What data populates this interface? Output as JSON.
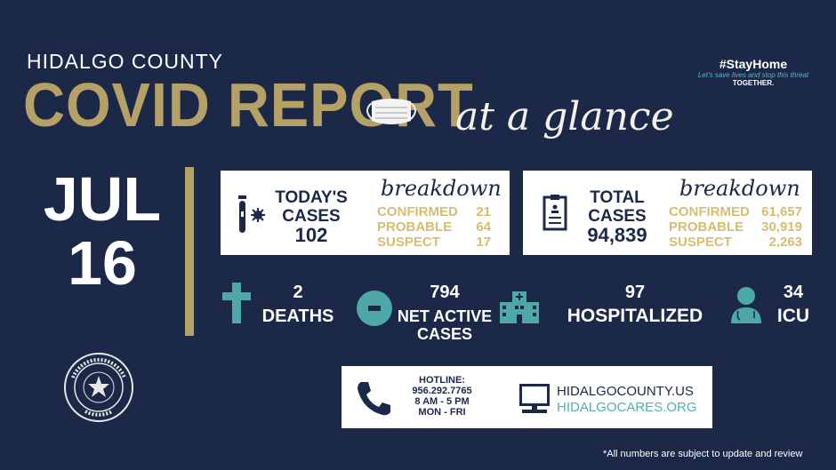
{
  "header": {
    "county": "HIDALGO COUNTY",
    "title": "COVID REPORT",
    "subtitle": "at a glance"
  },
  "stayhome": {
    "hashtag": "#StayHome",
    "tagline": "Let's save lives and stop this threat",
    "together": "TOGETHER."
  },
  "date": {
    "month": "JUL",
    "day": "16"
  },
  "today": {
    "title_line1": "TODAY'S",
    "title_line2": "CASES",
    "total": "102",
    "breakdown_label": "breakdown",
    "rows": [
      {
        "label": "CONFIRMED",
        "value": "21"
      },
      {
        "label": "PROBABLE",
        "value": "64"
      },
      {
        "label": "SUSPECT",
        "value": "17"
      }
    ]
  },
  "totals": {
    "title_line1": "TOTAL",
    "title_line2": "CASES",
    "total": "94,839",
    "breakdown_label": "breakdown",
    "rows": [
      {
        "label": "CONFIRMED",
        "value": "61,657"
      },
      {
        "label": "PROBABLE",
        "value": "30,919"
      },
      {
        "label": "SUSPECT",
        "value": "2,263"
      }
    ]
  },
  "stats": {
    "deaths": {
      "value": "2",
      "label": "DEATHS"
    },
    "active": {
      "value": "794",
      "label1": "NET ACTIVE",
      "label2": "CASES"
    },
    "hospitalized": {
      "value": "97",
      "label": "HOSPITALIZED"
    },
    "icu": {
      "value": "34",
      "label": "ICU"
    }
  },
  "seal": {
    "text": "THE COUNTY OF HIDALGO",
    "state": "TEXAS"
  },
  "contact": {
    "hotline_label": "HOTLINE:",
    "phone": "956.292.7765",
    "hours": "8 AM - 5 PM",
    "days": "MON - FRI",
    "site1": "HIDALGOCOUNTY.US",
    "site2": "HIDALGOCARES.ORG"
  },
  "footnote": "*All numbers are subject to update and review",
  "colors": {
    "background": "#1c2848",
    "gold": "#b5a066",
    "teal": "#4fa8a8",
    "breakdown_text": "#d6bd6e"
  }
}
